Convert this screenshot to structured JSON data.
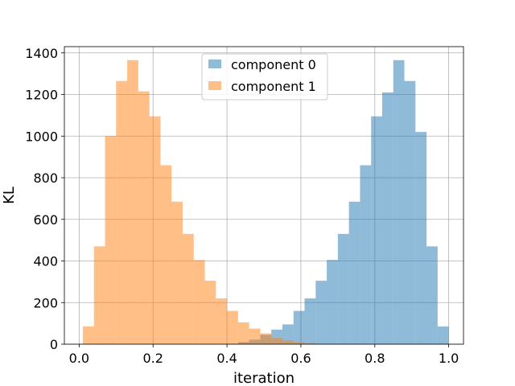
{
  "chart_data": {
    "type": "bar",
    "title": "",
    "xlabel": "iteration",
    "ylabel": "KL",
    "xlim": [
      -0.04,
      1.04
    ],
    "ylim": [
      0,
      1430
    ],
    "xticks": [
      0.0,
      0.2,
      0.4,
      0.6,
      0.8,
      1.0
    ],
    "xtick_labels": [
      "0.0",
      "0.2",
      "0.4",
      "0.6",
      "0.8",
      "1.0"
    ],
    "yticks": [
      0,
      200,
      400,
      600,
      800,
      1000,
      1200,
      1400
    ],
    "ytick_labels": [
      "0",
      "200",
      "400",
      "600",
      "800",
      "1000",
      "1200",
      "1400"
    ],
    "grid": true,
    "legend_position": "top-center",
    "bin_edges": [
      0.01,
      0.04,
      0.07,
      0.1,
      0.13,
      0.16,
      0.19,
      0.22,
      0.25,
      0.28,
      0.31,
      0.34,
      0.37,
      0.4,
      0.43,
      0.46,
      0.49,
      0.52,
      0.55,
      0.58,
      0.61,
      0.64,
      0.67,
      0.7,
      0.73,
      0.76,
      0.79,
      0.82,
      0.85,
      0.88,
      0.91,
      0.94,
      0.97,
      1.0
    ],
    "series": [
      {
        "name": "component 0",
        "color": "#1f77b4",
        "opacity": 0.5,
        "values": [
          0,
          0,
          0,
          0,
          0,
          0,
          0,
          0,
          0,
          0,
          0,
          0,
          0,
          2,
          10,
          22,
          45,
          70,
          95,
          160,
          220,
          305,
          405,
          530,
          685,
          860,
          1095,
          1210,
          1365,
          1265,
          1020,
          470,
          85
        ]
      },
      {
        "name": "component 1",
        "color": "#ff7f0e",
        "opacity": 0.5,
        "values": [
          85,
          470,
          1000,
          1265,
          1365,
          1215,
          1095,
          860,
          685,
          530,
          405,
          305,
          220,
          160,
          105,
          75,
          52,
          30,
          18,
          9,
          5,
          3,
          0,
          0,
          0,
          0,
          0,
          0,
          0,
          0,
          0,
          0,
          0
        ]
      }
    ]
  }
}
